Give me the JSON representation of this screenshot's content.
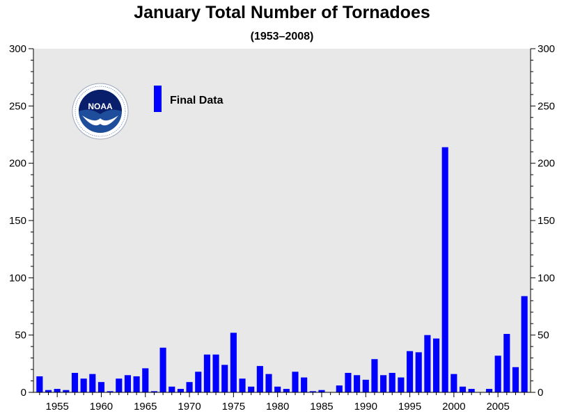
{
  "chart_data": {
    "type": "bar",
    "title": "January Total Number of Tornadoes",
    "subtitle": "(1953–2008)",
    "xlabel": "",
    "ylabel": "",
    "ylim": [
      0,
      300
    ],
    "yticks": [
      0,
      50,
      100,
      150,
      200,
      250,
      300
    ],
    "xticks": [
      1955,
      1960,
      1965,
      1970,
      1975,
      1980,
      1985,
      1990,
      1995,
      2000,
      2005
    ],
    "xlim": [
      1952.3,
      2008.7
    ],
    "grid": false,
    "legend_position": "top-left",
    "bar_color": "#0000ff",
    "background_color": "#e8e8e8",
    "series": [
      {
        "name": "Final Data",
        "x": [
          1953,
          1954,
          1955,
          1956,
          1957,
          1958,
          1959,
          1960,
          1961,
          1962,
          1963,
          1964,
          1965,
          1966,
          1967,
          1968,
          1969,
          1970,
          1971,
          1972,
          1973,
          1974,
          1975,
          1976,
          1977,
          1978,
          1979,
          1980,
          1981,
          1982,
          1983,
          1984,
          1985,
          1986,
          1987,
          1988,
          1989,
          1990,
          1991,
          1992,
          1993,
          1994,
          1995,
          1996,
          1997,
          1998,
          1999,
          2000,
          2001,
          2002,
          2003,
          2004,
          2005,
          2006,
          2007,
          2008
        ],
        "values": [
          14,
          2,
          3,
          2,
          17,
          12,
          16,
          9,
          1,
          12,
          15,
          14,
          21,
          1,
          39,
          5,
          3,
          9,
          18,
          33,
          33,
          24,
          52,
          12,
          5,
          23,
          16,
          5,
          3,
          18,
          13,
          1,
          2,
          0,
          6,
          17,
          15,
          11,
          29,
          15,
          17,
          13,
          36,
          35,
          50,
          47,
          214,
          16,
          5,
          3,
          0,
          3,
          32,
          51,
          22,
          84
        ]
      }
    ]
  },
  "logo": {
    "text": "NOAA",
    "ring_text": "NATIONAL OCEANIC AND ATMOSPHERIC ADMINISTRATION · U.S. DEPARTMENT OF COMMERCE"
  }
}
